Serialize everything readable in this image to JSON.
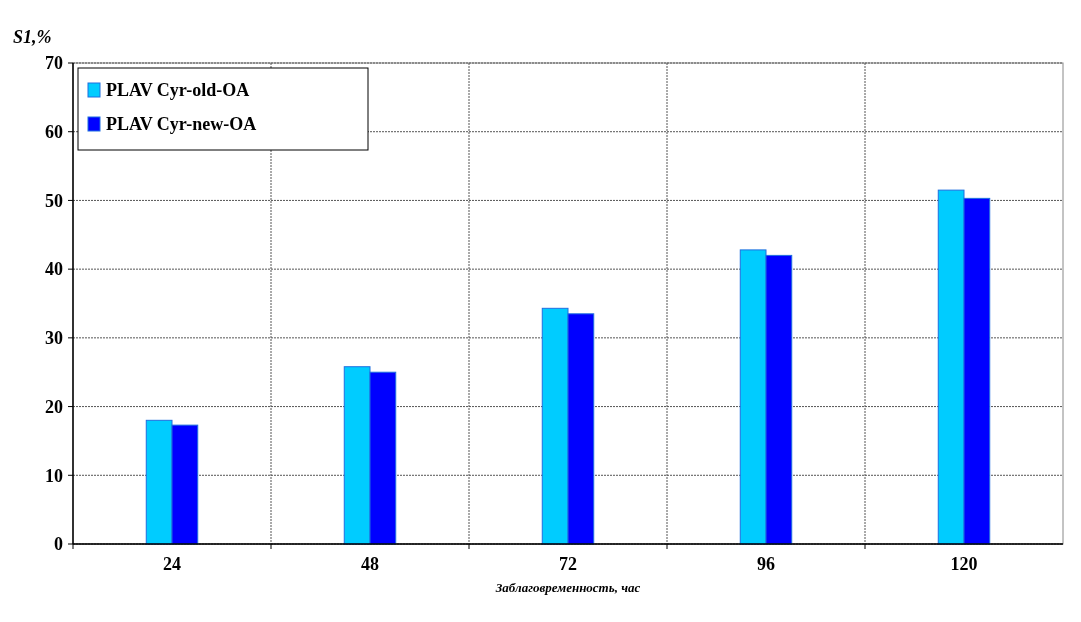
{
  "chart_data": {
    "type": "bar",
    "ylabel": "S1,%",
    "xlabel": "Заблаговременность, час",
    "categories": [
      "24",
      "48",
      "72",
      "96",
      "120"
    ],
    "series": [
      {
        "name": "PLAV Cyr-old-OA",
        "color": "#00ccff",
        "values": [
          18.0,
          25.8,
          34.3,
          42.8,
          51.5
        ]
      },
      {
        "name": "PLAV Cyr-new-OA",
        "color": "#0000ff",
        "values": [
          17.3,
          25.0,
          33.5,
          42.0,
          50.3
        ]
      }
    ],
    "ylim": [
      0,
      70
    ],
    "yticks": [
      0,
      10,
      20,
      30,
      40,
      50,
      60,
      70
    ],
    "grid": true,
    "legend": "top left"
  }
}
